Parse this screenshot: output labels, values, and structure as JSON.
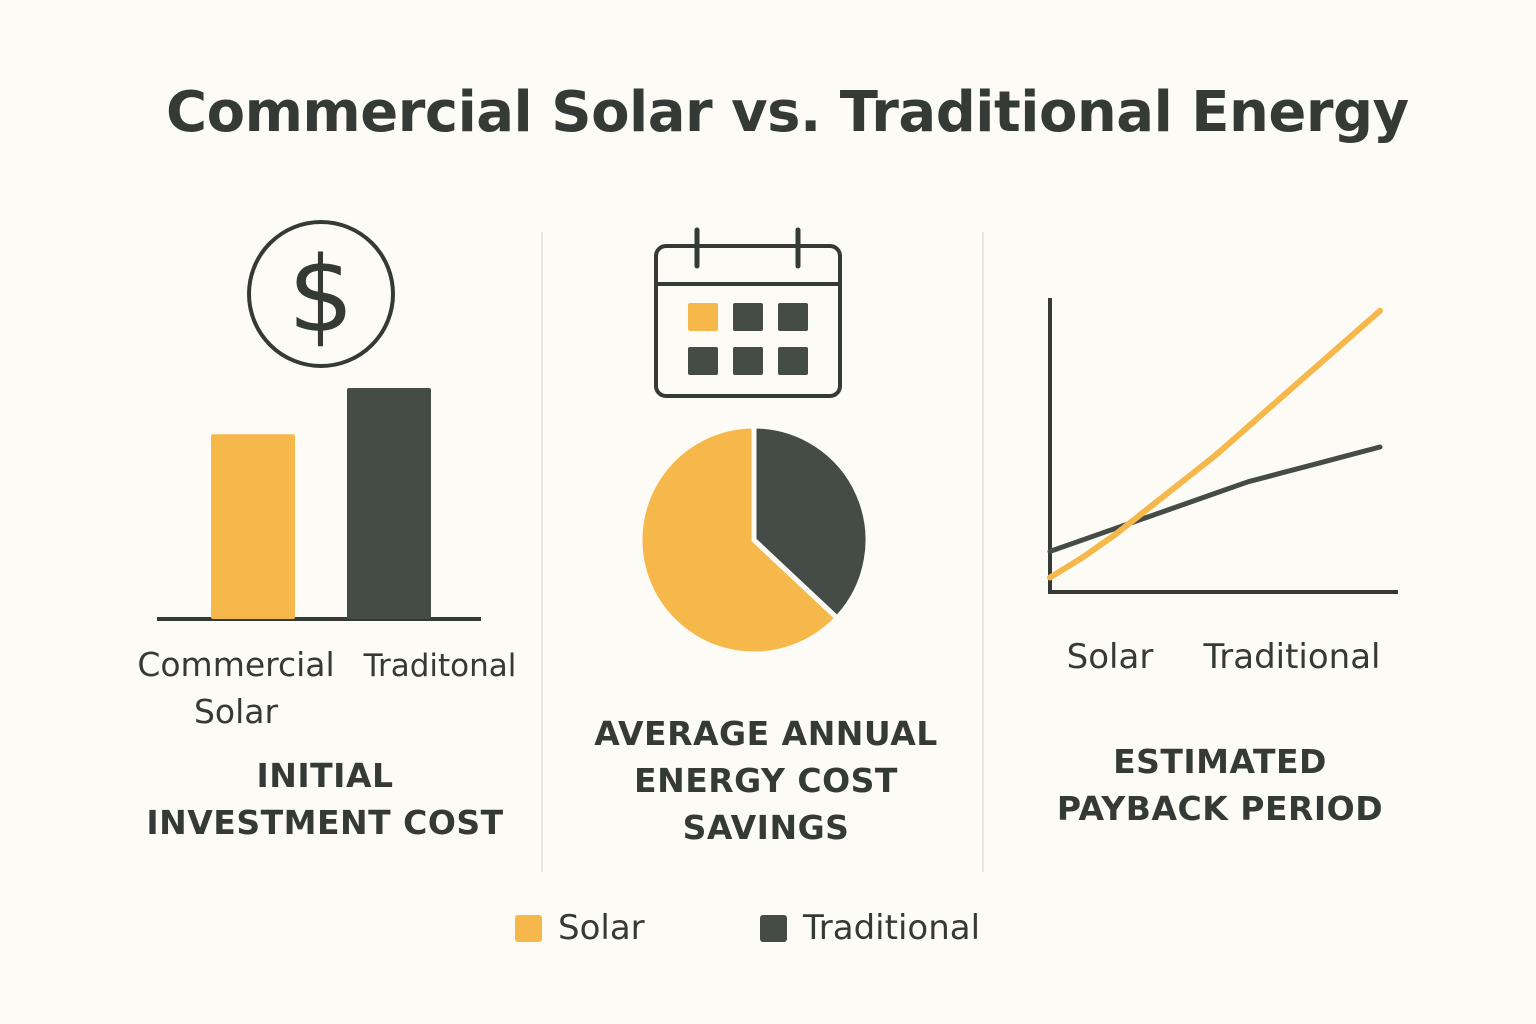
{
  "title": "Commercial Solar vs. Traditional Energy",
  "colors": {
    "solar": "#f7b84b",
    "traditional": "#454b47",
    "ink": "#353a36",
    "background": "#fcfbf6"
  },
  "icons": {
    "panel1": "dollar-coin-icon",
    "panel2": "calendar-icon"
  },
  "panels": [
    {
      "title_line1": "INITIAL",
      "title_line2": "INVESTMENT COST"
    },
    {
      "title_line1": "AVERAGE ANNUAL",
      "title_line2": "ENERGY COST",
      "title_line3": "SAVINGS"
    },
    {
      "title_line1": "ESTIMATED",
      "title_line2": "PAYBACK PERIOD"
    }
  ],
  "dollar_symbol": "$",
  "chart_data": [
    {
      "type": "bar",
      "title": "INITIAL INVESTMENT COST",
      "categories": [
        "Commercial Solar",
        "Traditonal"
      ],
      "category_lines": [
        [
          "Commercial",
          "Solar"
        ],
        [
          "Traditonal"
        ]
      ],
      "values": [
        60,
        75
      ],
      "ylim": [
        0,
        100
      ],
      "xlabel": "",
      "ylabel": ""
    },
    {
      "type": "pie",
      "title": "AVERAGE ANNUAL ENERGY COST SAVINGS",
      "labels": [
        "Solar",
        "Traditional"
      ],
      "values": [
        63,
        37
      ]
    },
    {
      "type": "line",
      "title": "ESTIMATED PAYBACK PERIOD",
      "x": [
        0,
        1,
        2,
        3,
        4,
        5,
        6,
        7,
        8,
        9,
        10
      ],
      "xlim": [
        0,
        10
      ],
      "ylim": [
        0,
        100
      ],
      "series": [
        {
          "name": "Solar",
          "values": [
            5,
            12,
            20,
            29,
            38,
            47,
            57,
            67,
            77,
            87,
            97
          ]
        },
        {
          "name": "Traditional",
          "values": [
            14,
            18,
            22,
            26,
            30,
            34,
            38,
            41,
            44,
            47,
            50
          ]
        }
      ],
      "x_tick_labels": [
        "Solar",
        "Traditional"
      ]
    }
  ],
  "legend": [
    {
      "label": "Solar"
    },
    {
      "label": "Traditional"
    }
  ]
}
